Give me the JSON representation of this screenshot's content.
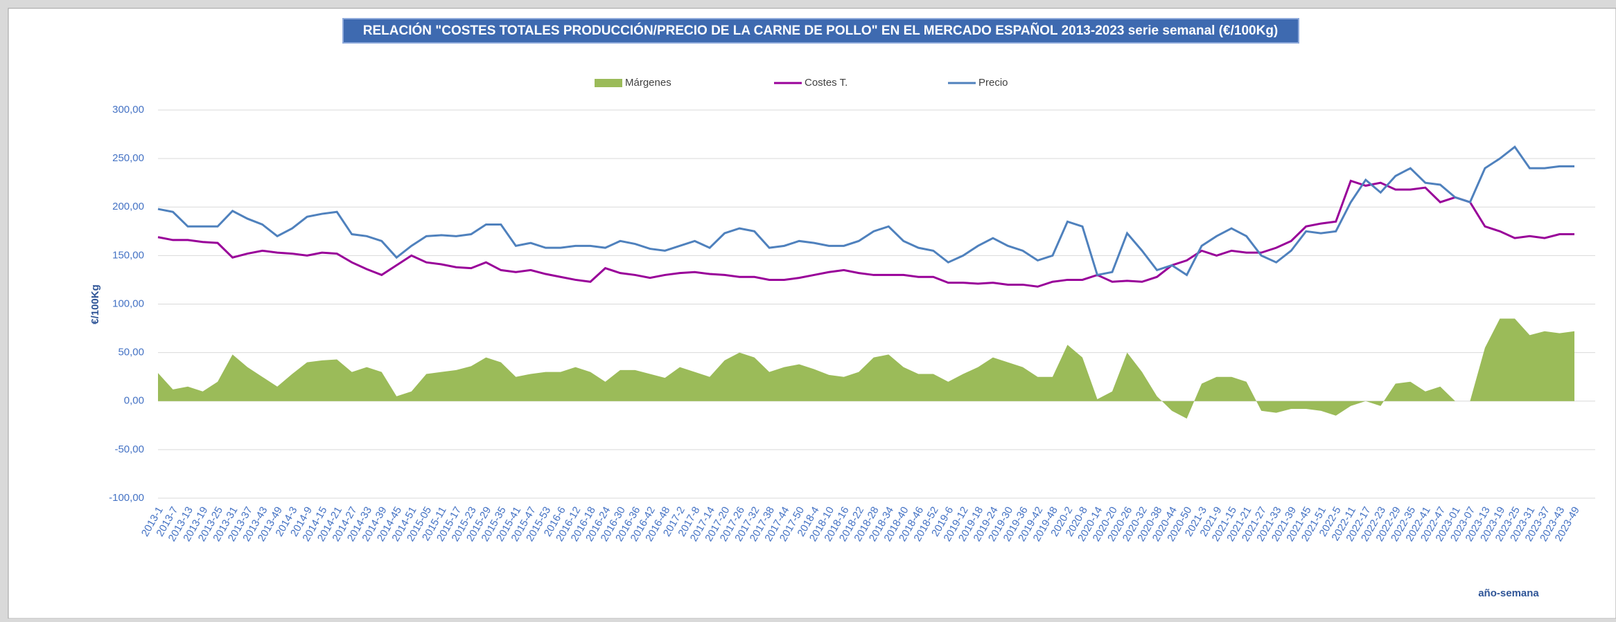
{
  "chart_data": {
    "type": "line",
    "title": "RELACIÓN \"COSTES TOTALES PRODUCCIÓN/PRECIO DE LA CARNE DE POLLO\" EN EL MERCADO ESPAÑOL 2013-2023 serie semanal (€/100Kg)",
    "y_label": "€/100Kg",
    "x_label": "año-semana",
    "legend": "top",
    "grid": true,
    "ylim": [
      -100,
      300
    ],
    "yticks": [
      {
        "value": -100,
        "label": "-100,00"
      },
      {
        "value": -50,
        "label": "-50,00"
      },
      {
        "value": 0,
        "label": "0,00"
      },
      {
        "value": 50,
        "label": "50,00"
      },
      {
        "value": 100,
        "label": "100,00"
      },
      {
        "value": 150,
        "label": "150,00"
      },
      {
        "value": 200,
        "label": "200,00"
      },
      {
        "value": 250,
        "label": "250,00"
      },
      {
        "value": 300,
        "label": "300,00"
      }
    ],
    "categories": [
      "2013-1",
      "2013-7",
      "2013-13",
      "2013-19",
      "2013-25",
      "2013-31",
      "2013-37",
      "2013-43",
      "2013-49",
      "2014-3",
      "2014-9",
      "2014-15",
      "2014-21",
      "2014-27",
      "2014-33",
      "2014-39",
      "2014-45",
      "2014-51",
      "2015-05",
      "2015-11",
      "2015-17",
      "2015-23",
      "2015-29",
      "2015-35",
      "2015-41",
      "2015-47",
      "2015-53",
      "2016-6",
      "2016-12",
      "2016-18",
      "2016-24",
      "2016-30",
      "2016-36",
      "2016-42",
      "2016-48",
      "2017-2",
      "2017-8",
      "2017-14",
      "2017-20",
      "2017-26",
      "2017-32",
      "2017-38",
      "2017-44",
      "2017-50",
      "2018-4",
      "2018-10",
      "2018-16",
      "2018-22",
      "2018-28",
      "2018-34",
      "2018-40",
      "2018-46",
      "2018-52",
      "2019-6",
      "2019-12",
      "2019-18",
      "2019-24",
      "2019-30",
      "2019-36",
      "2019-42",
      "2019-48",
      "2020-2",
      "2020-8",
      "2020-14",
      "2020-20",
      "2020-26",
      "2020-32",
      "2020-38",
      "2020-44",
      "2020-50",
      "2021-3",
      "2021-9",
      "2021-15",
      "2021-21",
      "2021-27",
      "2021-33",
      "2021-39",
      "2021-45",
      "2021-51",
      "2022-5",
      "2022-11",
      "2022-17",
      "2022-23",
      "2022-29",
      "2022-35",
      "2022-41",
      "2022-47",
      "2023-01",
      "2023-07",
      "2023-13",
      "2023-19",
      "2023-25",
      "2023-31",
      "2023-37",
      "2023-43",
      "2023-49"
    ],
    "series": [
      {
        "name": "Márgenes",
        "kind": "area",
        "color": "#9bbb59",
        "values": [
          29,
          12,
          15,
          10,
          20,
          48,
          35,
          25,
          15,
          28,
          40,
          42,
          43,
          30,
          35,
          30,
          5,
          10,
          28,
          30,
          32,
          36,
          45,
          40,
          25,
          28,
          30,
          30,
          35,
          30,
          20,
          32,
          32,
          28,
          24,
          35,
          30,
          25,
          42,
          50,
          45,
          30,
          35,
          38,
          33,
          27,
          25,
          30,
          45,
          48,
          35,
          28,
          28,
          20,
          28,
          35,
          45,
          40,
          35,
          25,
          25,
          58,
          45,
          2,
          10,
          50,
          30,
          5,
          -10,
          -18,
          18,
          25,
          25,
          20,
          -10,
          -12,
          -8,
          -8,
          -10,
          -15,
          -5,
          0,
          -5,
          18,
          20,
          10,
          15,
          0,
          0,
          55,
          85,
          85,
          68,
          72,
          70,
          72
        ]
      },
      {
        "name": "Costes T.",
        "kind": "line",
        "color": "#990099",
        "values": [
          169,
          166,
          166,
          164,
          163,
          148,
          152,
          155,
          153,
          152,
          150,
          153,
          152,
          143,
          136,
          130,
          140,
          150,
          143,
          141,
          138,
          137,
          143,
          135,
          133,
          135,
          131,
          128,
          125,
          123,
          137,
          132,
          130,
          127,
          130,
          132,
          133,
          131,
          130,
          128,
          128,
          125,
          125,
          127,
          130,
          133,
          135,
          132,
          130,
          130,
          130,
          128,
          128,
          122,
          122,
          121,
          122,
          120,
          120,
          118,
          123,
          125,
          125,
          130,
          123,
          124,
          123,
          128,
          140,
          145,
          155,
          150,
          155,
          153,
          153,
          158,
          165,
          180,
          183,
          185,
          227,
          222,
          225,
          218,
          218,
          220,
          205,
          210,
          205,
          180,
          175,
          168,
          170,
          168,
          172,
          172
        ]
      },
      {
        "name": "Precio",
        "kind": "line",
        "color": "#4f81bd",
        "values": [
          198,
          195,
          180,
          180,
          180,
          196,
          188,
          182,
          170,
          178,
          190,
          193,
          195,
          172,
          170,
          165,
          148,
          160,
          170,
          171,
          170,
          172,
          182,
          182,
          160,
          163,
          158,
          158,
          160,
          160,
          158,
          165,
          162,
          157,
          155,
          160,
          165,
          158,
          173,
          178,
          175,
          158,
          160,
          165,
          163,
          160,
          160,
          165,
          175,
          180,
          165,
          158,
          155,
          143,
          150,
          160,
          168,
          160,
          155,
          145,
          150,
          185,
          180,
          130,
          133,
          173,
          155,
          135,
          140,
          130,
          160,
          170,
          178,
          170,
          150,
          143,
          155,
          175,
          173,
          175,
          205,
          228,
          215,
          232,
          240,
          225,
          223,
          210,
          205,
          240,
          250,
          262,
          240,
          240,
          242,
          242
        ]
      }
    ]
  }
}
